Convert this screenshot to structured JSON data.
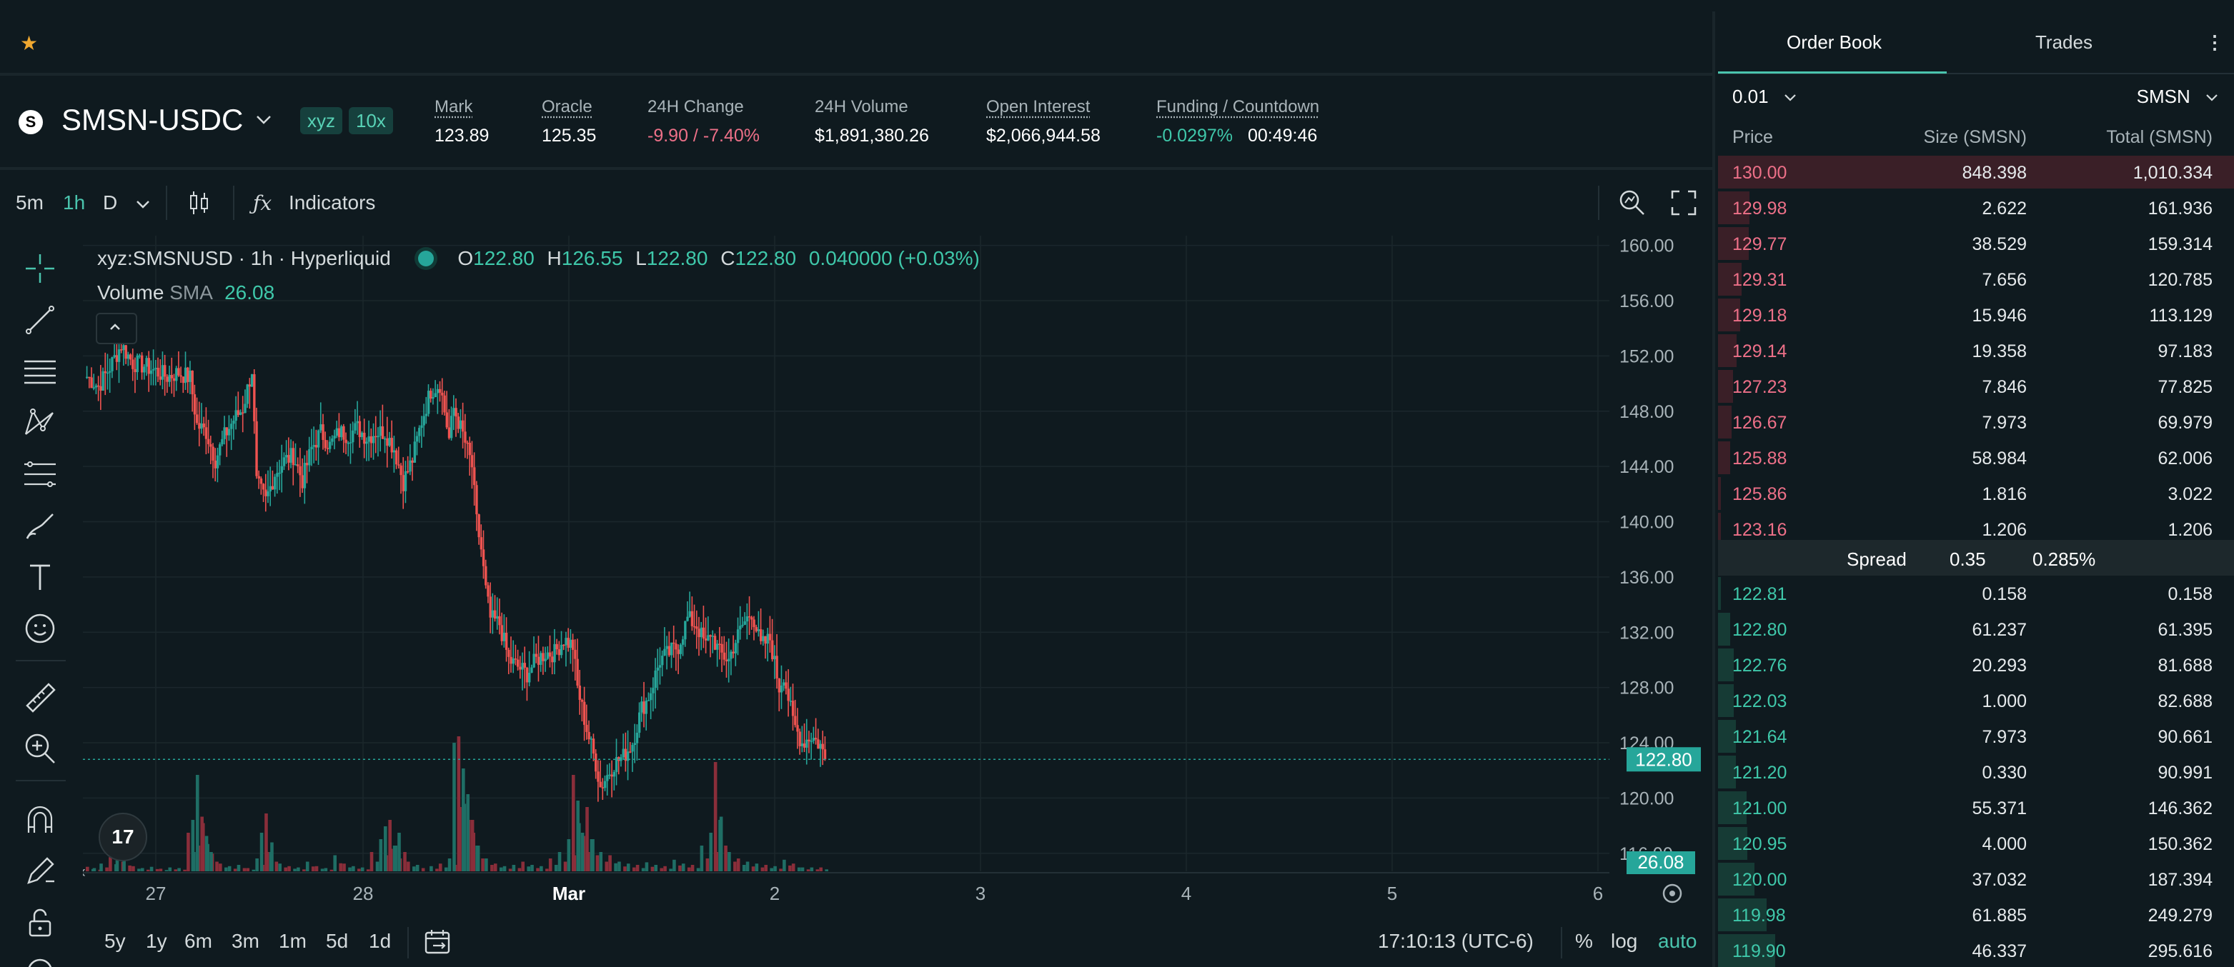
{
  "topbar": {
    "star_icon": "star-icon"
  },
  "ticker": {
    "coin_logo_letter": "S",
    "pair": "SMSN-USDC",
    "tag_dex": "xyz",
    "tag_leverage": "10x",
    "stats": [
      {
        "label": "Mark",
        "value": "123.89"
      },
      {
        "label": "Oracle",
        "value": "125.35"
      },
      {
        "label": "24H Change",
        "value": "-9.90 / -7.40%"
      },
      {
        "label": "24H Volume",
        "value": "$1,891,380.26"
      },
      {
        "label": "Open Interest",
        "value": "$2,066,944.58"
      },
      {
        "label": "Funding / Countdown",
        "value": "-0.0297%",
        "value2": "00:49:46"
      }
    ]
  },
  "chart_toolbar": {
    "intervals": [
      "5m",
      "1h",
      "D"
    ],
    "active_interval": "1h",
    "indicators_label": "Indicators"
  },
  "chart": {
    "legend": {
      "symbol": "xyz:SMSNUSD · 1h · Hyperliquid",
      "o_label": "O",
      "o": "122.80",
      "h_label": "H",
      "h": "126.55",
      "l_label": "L",
      "l": "122.80",
      "c_label": "C",
      "c": "122.80",
      "change": "0.040000 (+0.03%)",
      "volume_label": "Volume",
      "sma_label": "SMA",
      "sma_value": "26.08"
    },
    "price_badge": "122.80",
    "volume_badge": "26.08",
    "tv_logo": "17"
  },
  "bottombar": {
    "ranges": [
      "5y",
      "1y",
      "6m",
      "3m",
      "1m",
      "5d",
      "1d"
    ],
    "clock": "17:10:13 (UTC-6)",
    "pct": "%",
    "log": "log",
    "auto": "auto"
  },
  "orderbook": {
    "tabs": [
      "Order Book",
      "Trades"
    ],
    "active_tab": "Order Book",
    "tick_size": "0.01",
    "unit": "SMSN",
    "headers": {
      "price": "Price",
      "size": "Size (SMSN)",
      "total": "Total (SMSN)"
    },
    "asks": [
      {
        "price": "130.00",
        "size": "848.398",
        "total": "1,010.334"
      },
      {
        "price": "129.98",
        "size": "2.622",
        "total": "161.936"
      },
      {
        "price": "129.77",
        "size": "38.529",
        "total": "159.314"
      },
      {
        "price": "129.31",
        "size": "7.656",
        "total": "120.785"
      },
      {
        "price": "129.18",
        "size": "15.946",
        "total": "113.129"
      },
      {
        "price": "129.14",
        "size": "19.358",
        "total": "97.183"
      },
      {
        "price": "127.23",
        "size": "7.846",
        "total": "77.825"
      },
      {
        "price": "126.67",
        "size": "7.973",
        "total": "69.979"
      },
      {
        "price": "125.88",
        "size": "58.984",
        "total": "62.006"
      },
      {
        "price": "125.86",
        "size": "1.816",
        "total": "3.022"
      },
      {
        "price": "123.16",
        "size": "1.206",
        "total": "1.206"
      }
    ],
    "spread": {
      "label": "Spread",
      "value": "0.35",
      "pct": "0.285%"
    },
    "bids": [
      {
        "price": "122.81",
        "size": "0.158",
        "total": "0.158"
      },
      {
        "price": "122.80",
        "size": "61.237",
        "total": "61.395"
      },
      {
        "price": "122.76",
        "size": "20.293",
        "total": "81.688"
      },
      {
        "price": "122.03",
        "size": "1.000",
        "total": "82.688"
      },
      {
        "price": "121.64",
        "size": "7.973",
        "total": "90.661"
      },
      {
        "price": "121.20",
        "size": "0.330",
        "total": "90.991"
      },
      {
        "price": "121.00",
        "size": "55.371",
        "total": "146.362"
      },
      {
        "price": "120.95",
        "size": "4.000",
        "total": "150.362"
      },
      {
        "price": "120.00",
        "size": "37.032",
        "total": "187.394"
      },
      {
        "price": "119.98",
        "size": "61.885",
        "total": "249.279"
      },
      {
        "price": "119.90",
        "size": "46.337",
        "total": "295.616"
      }
    ]
  },
  "chart_data": {
    "type": "candlestick",
    "y_axis_labels": [
      "160.00",
      "156.00",
      "152.00",
      "148.00",
      "144.00",
      "140.00",
      "136.00",
      "132.00",
      "128.00",
      "124.00",
      "120.00",
      "116.00"
    ],
    "y_range": [
      114.8,
      160.5
    ],
    "x_axis_labels": [
      "27",
      "28",
      "Mar",
      "2",
      "3",
      "4",
      "5",
      "6"
    ],
    "last_price": 122.8,
    "colors": {
      "up": "#26a69a",
      "down": "#ef5350"
    },
    "anchors": [
      [
        0,
        150.5
      ],
      [
        5,
        149.8
      ],
      [
        10,
        151.2
      ],
      [
        15,
        152.8
      ],
      [
        20,
        151.5
      ],
      [
        25,
        151.3
      ],
      [
        30,
        150.9
      ],
      [
        35,
        150.5
      ],
      [
        40,
        150.8
      ],
      [
        45,
        150.4
      ],
      [
        48,
        147
      ],
      [
        52,
        146.5
      ],
      [
        56,
        144.5
      ],
      [
        60,
        146.2
      ],
      [
        64,
        147.4
      ],
      [
        68,
        148.2
      ],
      [
        70,
        149.6
      ],
      [
        72,
        151
      ],
      [
        74,
        142.8
      ],
      [
        78,
        141.5
      ],
      [
        82,
        143.5
      ],
      [
        86,
        144.4
      ],
      [
        90,
        144.8
      ],
      [
        94,
        143
      ],
      [
        98,
        145.3
      ],
      [
        102,
        146.5
      ],
      [
        106,
        145.5
      ],
      [
        110,
        146.5
      ],
      [
        114,
        146.3
      ],
      [
        118,
        146.8
      ],
      [
        122,
        146.1
      ],
      [
        126,
        146.5
      ],
      [
        130,
        146.5
      ],
      [
        134,
        145.3
      ],
      [
        138,
        142.9
      ],
      [
        142,
        144.5
      ],
      [
        146,
        147.3
      ],
      [
        150,
        149.5
      ],
      [
        154,
        150
      ],
      [
        158,
        146
      ],
      [
        160,
        148.2
      ],
      [
        164,
        146.3
      ],
      [
        168,
        144
      ],
      [
        170,
        140
      ],
      [
        172,
        138
      ],
      [
        174,
        135
      ],
      [
        176,
        133
      ],
      [
        180,
        132.6
      ],
      [
        184,
        130
      ],
      [
        188,
        129.5
      ],
      [
        192,
        129
      ],
      [
        196,
        130
      ],
      [
        200,
        130.5
      ],
      [
        204,
        130.5
      ],
      [
        208,
        131.5
      ],
      [
        212,
        131
      ],
      [
        214,
        128
      ],
      [
        216,
        126.5
      ],
      [
        218,
        125
      ],
      [
        222,
        122.5
      ],
      [
        224,
        120.8
      ],
      [
        230,
        122.5
      ],
      [
        234,
        123
      ],
      [
        238,
        124
      ],
      [
        242,
        126.5
      ],
      [
        244,
        127
      ],
      [
        246,
        127.8
      ],
      [
        250,
        130
      ],
      [
        254,
        130.5
      ],
      [
        258,
        131
      ],
      [
        262,
        133
      ],
      [
        266,
        132.5
      ],
      [
        270,
        131
      ],
      [
        272,
        132
      ],
      [
        276,
        130.5
      ],
      [
        280,
        130
      ],
      [
        282,
        131
      ],
      [
        286,
        132.5
      ],
      [
        290,
        133.5
      ],
      [
        294,
        131
      ],
      [
        298,
        131.5
      ],
      [
        302,
        128
      ],
      [
        304,
        129
      ],
      [
        308,
        125.5
      ],
      [
        312,
        124
      ],
      [
        316,
        124.5
      ],
      [
        320,
        123.8
      ],
      [
        322,
        122.8
      ]
    ],
    "volume_bars": [
      [
        0,
        7
      ],
      [
        3,
        5
      ],
      [
        6,
        12
      ],
      [
        10,
        22
      ],
      [
        13,
        30
      ],
      [
        16,
        18
      ],
      [
        20,
        8
      ],
      [
        24,
        5
      ],
      [
        28,
        7
      ],
      [
        32,
        4
      ],
      [
        36,
        6
      ],
      [
        40,
        5
      ],
      [
        44,
        60
      ],
      [
        46,
        80
      ],
      [
        48,
        150
      ],
      [
        50,
        85
      ],
      [
        52,
        55
      ],
      [
        54,
        30
      ],
      [
        58,
        12
      ],
      [
        62,
        8
      ],
      [
        66,
        10
      ],
      [
        70,
        5
      ],
      [
        74,
        20
      ],
      [
        76,
        60
      ],
      [
        78,
        90
      ],
      [
        80,
        30
      ],
      [
        84,
        12
      ],
      [
        88,
        8
      ],
      [
        92,
        6
      ],
      [
        96,
        15
      ],
      [
        100,
        8
      ],
      [
        104,
        5
      ],
      [
        108,
        25
      ],
      [
        112,
        12
      ],
      [
        116,
        8
      ],
      [
        120,
        6
      ],
      [
        124,
        30
      ],
      [
        128,
        50
      ],
      [
        130,
        70
      ],
      [
        132,
        80
      ],
      [
        134,
        40
      ],
      [
        136,
        60
      ],
      [
        140,
        15
      ],
      [
        144,
        10
      ],
      [
        150,
        8
      ],
      [
        154,
        12
      ],
      [
        158,
        20
      ],
      [
        160,
        200
      ],
      [
        162,
        210
      ],
      [
        164,
        160
      ],
      [
        166,
        120
      ],
      [
        168,
        80
      ],
      [
        170,
        40
      ],
      [
        174,
        20
      ],
      [
        178,
        12
      ],
      [
        182,
        8
      ],
      [
        186,
        10
      ],
      [
        190,
        15
      ],
      [
        194,
        10
      ],
      [
        198,
        8
      ],
      [
        202,
        20
      ],
      [
        206,
        30
      ],
      [
        210,
        50
      ],
      [
        212,
        150
      ],
      [
        214,
        110
      ],
      [
        216,
        60
      ],
      [
        218,
        100
      ],
      [
        220,
        50
      ],
      [
        224,
        30
      ],
      [
        228,
        25
      ],
      [
        232,
        15
      ],
      [
        236,
        12
      ],
      [
        240,
        10
      ],
      [
        244,
        14
      ],
      [
        248,
        10
      ],
      [
        252,
        8
      ],
      [
        256,
        18
      ],
      [
        260,
        12
      ],
      [
        264,
        10
      ],
      [
        268,
        40
      ],
      [
        272,
        60
      ],
      [
        274,
        170
      ],
      [
        276,
        80
      ],
      [
        280,
        30
      ],
      [
        284,
        20
      ],
      [
        288,
        15
      ],
      [
        292,
        12
      ],
      [
        296,
        10
      ],
      [
        300,
        8
      ],
      [
        304,
        18
      ],
      [
        308,
        12
      ],
      [
        312,
        6
      ],
      [
        316,
        6
      ],
      [
        320,
        6
      ]
    ]
  }
}
